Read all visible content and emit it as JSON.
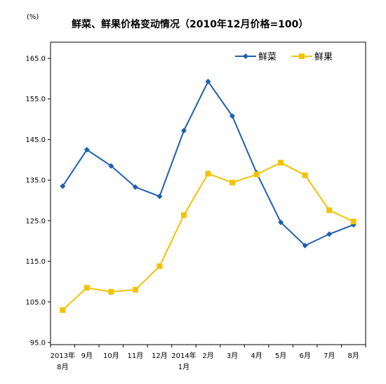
{
  "chart_data": {
    "type": "line",
    "title": "鲜菜、鲜果价格变动情况（2010年12月价格=100）",
    "unit_label": "(%)",
    "xlabel": "",
    "ylabel": "",
    "ylim": [
      95.0,
      165.0
    ],
    "y_ticks": [
      "95.0",
      "105.0",
      "115.0",
      "125.0",
      "135.0",
      "145.0",
      "155.0",
      "165.0"
    ],
    "categories": [
      [
        "2013年",
        "8月"
      ],
      [
        "9月"
      ],
      [
        "10月"
      ],
      [
        "11月"
      ],
      [
        "12月"
      ],
      [
        "2014年",
        "1月"
      ],
      [
        "2月"
      ],
      [
        "3月"
      ],
      [
        "4月"
      ],
      [
        "5月"
      ],
      [
        "6月"
      ],
      [
        "7月"
      ],
      [
        "8月"
      ]
    ],
    "legend_position": "top-right",
    "grid": false,
    "series": [
      {
        "name": "鲜菜",
        "color": "#1f5fb0",
        "marker": "diamond",
        "values": [
          133.5,
          142.5,
          138.5,
          133.3,
          131.0,
          147.2,
          159.3,
          150.8,
          136.8,
          124.6,
          118.9,
          121.7,
          124.0
        ]
      },
      {
        "name": "鲜果",
        "color": "#f2c400",
        "marker": "square",
        "values": [
          103.0,
          108.5,
          107.5,
          108.0,
          113.8,
          126.4,
          136.6,
          134.4,
          136.4,
          139.3,
          136.2,
          127.6,
          124.8
        ]
      }
    ]
  }
}
